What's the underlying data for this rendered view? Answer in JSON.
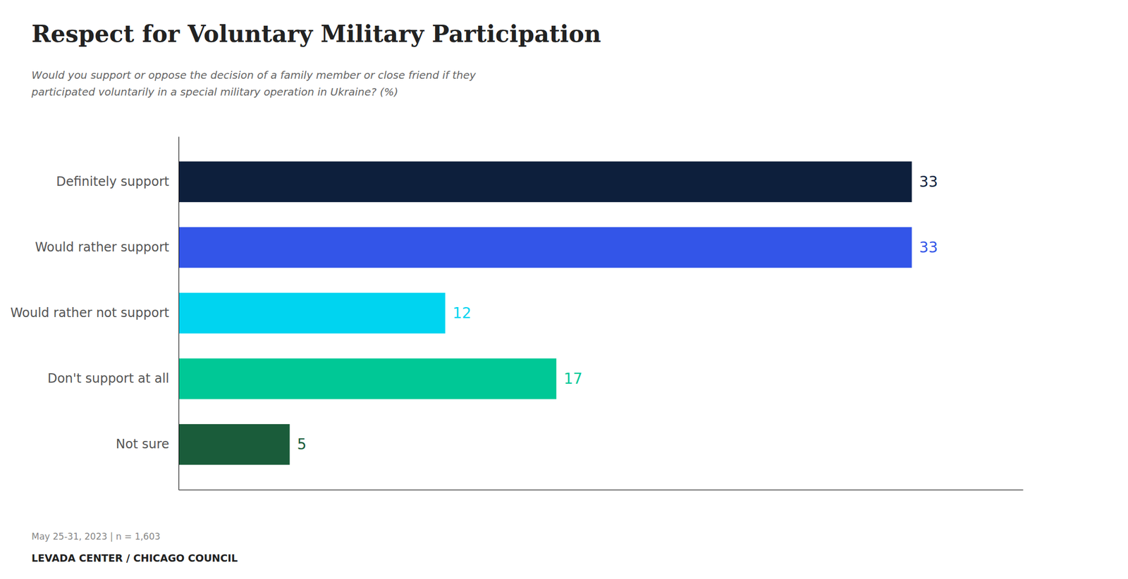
{
  "chart_data": {
    "type": "bar",
    "orientation": "horizontal",
    "title": "Respect for Voluntary Military Participation",
    "subtitle": "Would you support or oppose the decision of a family member or close friend if they\nparticipated voluntarily in a special military operation in Ukraine? (%)",
    "categories": [
      "Definitely support",
      "Would rather support",
      "Would rather not support",
      "Don't support at all",
      "Not sure"
    ],
    "values": [
      33,
      33,
      12,
      17,
      5
    ],
    "colors": [
      "#0d1f3c",
      "#3355e8",
      "#00d4f0",
      "#00c896",
      "#1a5c3a"
    ],
    "xlim": [
      0,
      38
    ],
    "data_labels": true,
    "tick_labels": "y",
    "grid": false,
    "annotations": [
      "May 25-31, 2023 | n = 1,603",
      "LEVADA CENTER / CHICAGO COUNCIL"
    ]
  }
}
